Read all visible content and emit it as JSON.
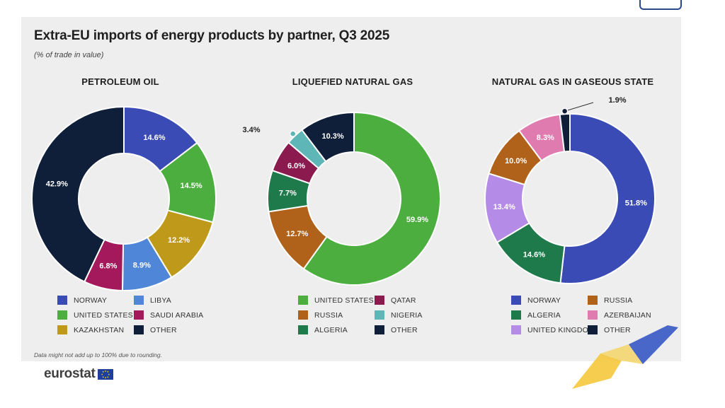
{
  "title": "Extra-EU imports of energy products by partner, Q3 2025",
  "subtitle": "(% of trade in value)",
  "footnote": "Data might not add up to 100% due to rounding.",
  "brand": "eurostat",
  "chart_data": [
    {
      "type": "pie",
      "title": "PETROLEUM OIL",
      "slices": [
        {
          "label": "NORWAY",
          "value": 14.6,
          "display": "14.6%",
          "color": "#3a4bb5"
        },
        {
          "label": "UNITED STATES",
          "value": 14.5,
          "display": "14.5%",
          "color": "#4cae3f"
        },
        {
          "label": "KAZAKHSTAN",
          "value": 12.2,
          "display": "12.2%",
          "color": "#bf9a1a"
        },
        {
          "label": "LIBYA",
          "value": 8.9,
          "display": "8.9%",
          "color": "#4f86d8"
        },
        {
          "label": "SAUDI ARABIA",
          "value": 6.8,
          "display": "6.8%",
          "color": "#a3195b"
        },
        {
          "label": "OTHER",
          "value": 42.9,
          "display": "42.9%",
          "color": "#0f1f3a"
        }
      ],
      "legend": [
        "NORWAY",
        "LIBYA",
        "UNITED STATES",
        "SAUDI ARABIA",
        "KAZAKHSTAN",
        "OTHER"
      ]
    },
    {
      "type": "pie",
      "title": "LIQUEFIED NATURAL GAS",
      "slices": [
        {
          "label": "UNITED STATES",
          "value": 59.9,
          "display": "59.9%",
          "color": "#4cae3f"
        },
        {
          "label": "RUSSIA",
          "value": 12.7,
          "display": "12.7%",
          "color": "#b0621a"
        },
        {
          "label": "ALGERIA",
          "value": 7.7,
          "display": "7.7%",
          "color": "#1e7a4a"
        },
        {
          "label": "QATAR",
          "value": 6.0,
          "display": "6.0%",
          "color": "#8b1a4f"
        },
        {
          "label": "NIGERIA",
          "value": 3.4,
          "display": "3.4%",
          "color": "#5fb6b6"
        },
        {
          "label": "OTHER",
          "value": 10.3,
          "display": "10.3%",
          "color": "#0f1f3a"
        }
      ],
      "legend": [
        "UNITED STATES",
        "QATAR",
        "RUSSIA",
        "NIGERIA",
        "ALGERIA",
        "OTHER"
      ]
    },
    {
      "type": "pie",
      "title": "NATURAL GAS IN GASEOUS STATE",
      "slices": [
        {
          "label": "NORWAY",
          "value": 51.8,
          "display": "51.8%",
          "color": "#3a4bb5"
        },
        {
          "label": "ALGERIA",
          "value": 14.6,
          "display": "14.6%",
          "color": "#1e7a4a"
        },
        {
          "label": "UNITED KINGDOM",
          "value": 13.4,
          "display": "13.4%",
          "color": "#b58be8"
        },
        {
          "label": "RUSSIA",
          "value": 10.0,
          "display": "10.0%",
          "color": "#b0621a"
        },
        {
          "label": "AZERBAIJAN",
          "value": 8.3,
          "display": "8.3%",
          "color": "#e07bb0"
        },
        {
          "label": "OTHER",
          "value": 1.9,
          "display": "1.9%",
          "color": "#0f1f3a"
        }
      ],
      "legend": [
        "NORWAY",
        "RUSSIA",
        "ALGERIA",
        "AZERBAIJAN",
        "UNITED KINGDOM",
        "OTHER"
      ]
    }
  ]
}
